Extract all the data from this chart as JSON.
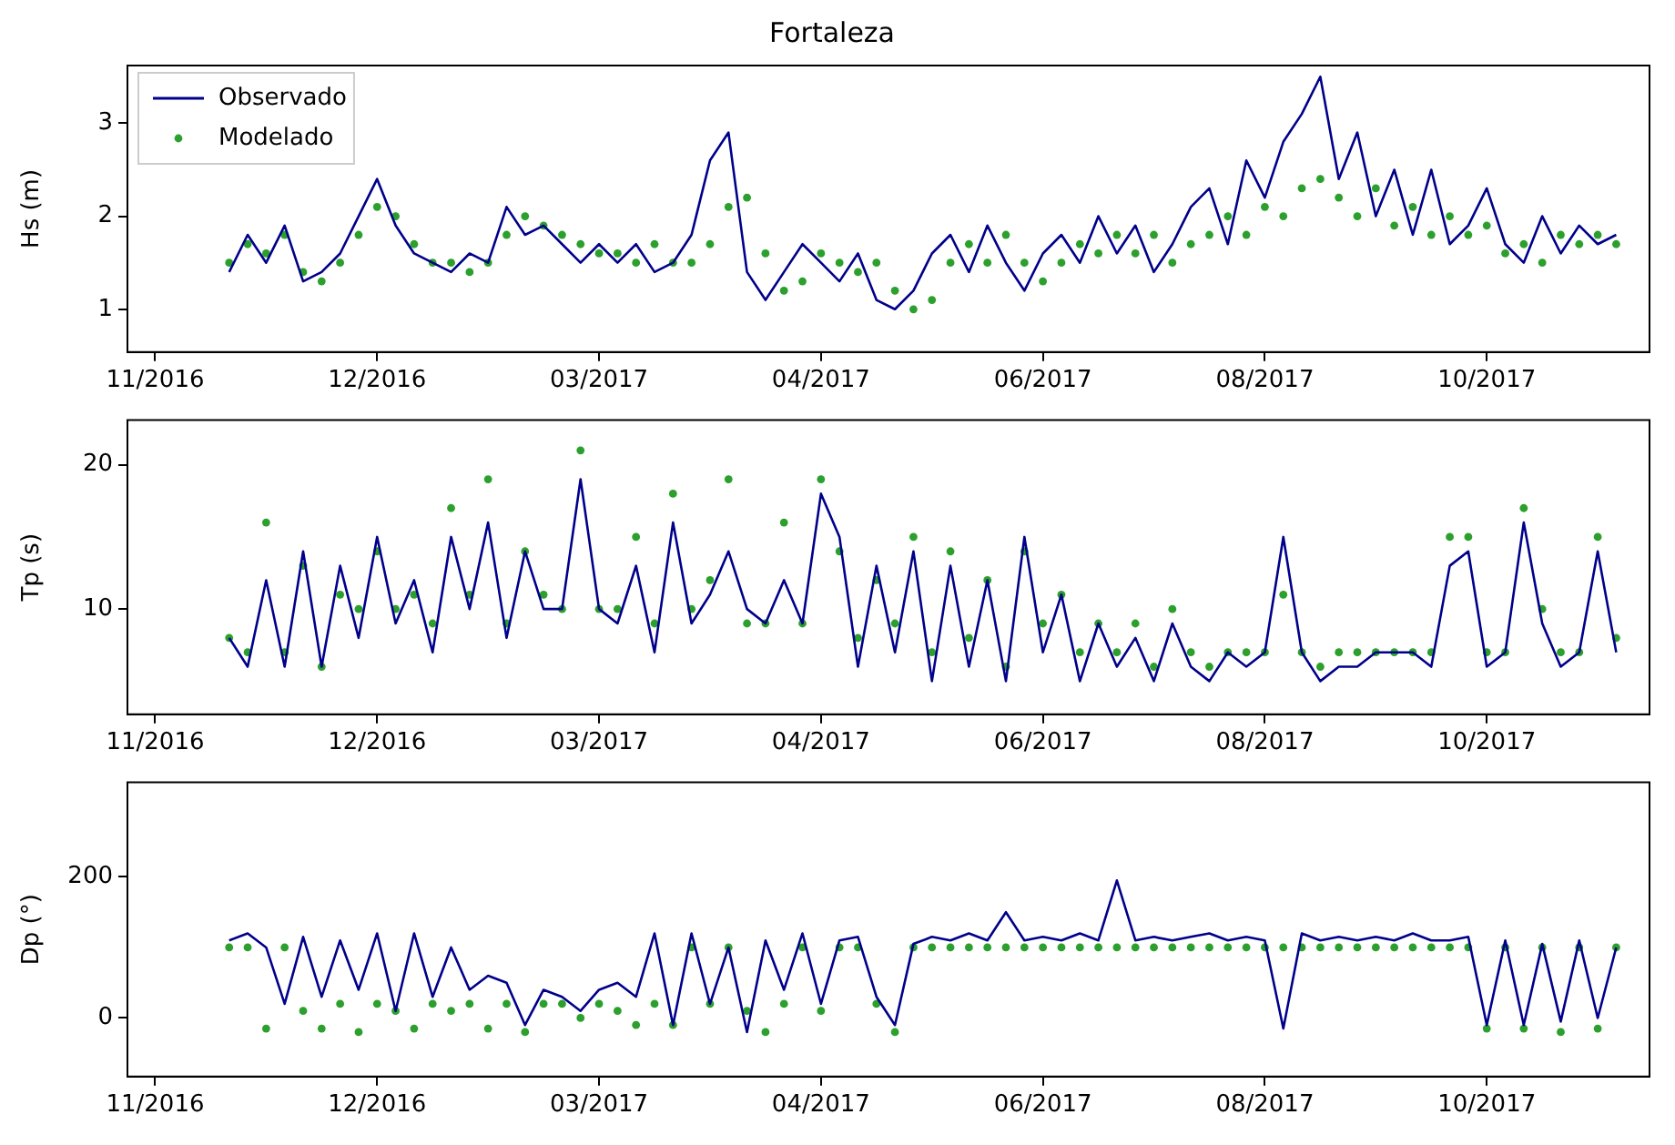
{
  "chart_data": [
    {
      "type": "line",
      "title": "Fortaleza",
      "ylabel": "Hs (m)",
      "legend": "top left",
      "categories": [
        "11/2016",
        null,
        null,
        null,
        null,
        null,
        null,
        null,
        null,
        null,
        null,
        null,
        "12/2016",
        null,
        null,
        null,
        null,
        null,
        null,
        null,
        null,
        null,
        null,
        null,
        "03/2017",
        null,
        null,
        null,
        null,
        null,
        null,
        null,
        null,
        null,
        null,
        null,
        "04/2017",
        null,
        null,
        null,
        null,
        null,
        null,
        null,
        null,
        null,
        null,
        null,
        "06/2017",
        null,
        null,
        null,
        null,
        null,
        null,
        null,
        null,
        null,
        null,
        null,
        "08/2017",
        null,
        null,
        null,
        null,
        null,
        null,
        null,
        null,
        null,
        null,
        null,
        "10/2017",
        null,
        null,
        null,
        null,
        null,
        null,
        null
      ],
      "ylim": [
        0.54,
        3.62
      ],
      "yticks": [
        1,
        2,
        3
      ],
      "series": [
        {
          "name": "Observado",
          "type": "line",
          "color": "#00008b",
          "values": [
            null,
            null,
            null,
            null,
            1.4,
            1.8,
            1.5,
            1.9,
            1.3,
            1.4,
            1.6,
            2.0,
            2.4,
            1.9,
            1.6,
            1.5,
            1.4,
            1.6,
            1.5,
            2.1,
            1.8,
            1.9,
            1.7,
            1.5,
            1.7,
            1.5,
            1.7,
            1.4,
            1.5,
            1.8,
            2.6,
            2.9,
            1.4,
            1.1,
            1.4,
            1.7,
            1.5,
            1.3,
            1.6,
            1.1,
            1.0,
            1.2,
            1.6,
            1.8,
            1.4,
            1.9,
            1.5,
            1.2,
            1.6,
            1.8,
            1.5,
            2.0,
            1.6,
            1.9,
            1.4,
            1.7,
            2.1,
            2.3,
            1.7,
            2.6,
            2.2,
            2.8,
            3.1,
            3.5,
            2.4,
            2.9,
            2.0,
            2.5,
            1.8,
            2.5,
            1.7,
            1.9,
            2.3,
            1.7,
            1.5,
            2.0,
            1.6,
            1.9,
            1.7,
            1.8
          ]
        },
        {
          "name": "Modelado",
          "type": "scatter",
          "marker": "circle",
          "color": "#2ca02c",
          "values": [
            null,
            null,
            null,
            null,
            1.5,
            1.7,
            1.6,
            1.8,
            1.4,
            1.3,
            1.5,
            1.8,
            2.1,
            2.0,
            1.7,
            1.5,
            1.5,
            1.4,
            1.5,
            1.8,
            2.0,
            1.9,
            1.8,
            1.7,
            1.6,
            1.6,
            1.5,
            1.7,
            1.5,
            1.5,
            1.7,
            2.1,
            2.2,
            1.6,
            1.2,
            1.3,
            1.6,
            1.5,
            1.4,
            1.5,
            1.2,
            1.0,
            1.1,
            1.5,
            1.7,
            1.5,
            1.8,
            1.5,
            1.3,
            1.5,
            1.7,
            1.6,
            1.8,
            1.6,
            1.8,
            1.5,
            1.7,
            1.8,
            2.0,
            1.8,
            2.1,
            2.0,
            2.3,
            2.4,
            2.2,
            2.0,
            2.3,
            1.9,
            2.1,
            1.8,
            2.0,
            1.8,
            1.9,
            1.6,
            1.7,
            1.5,
            1.8,
            1.7,
            1.8,
            1.7
          ]
        }
      ]
    },
    {
      "type": "line",
      "ylabel": "Tp (s)",
      "categories": [
        "11/2016",
        null,
        null,
        null,
        null,
        null,
        null,
        null,
        null,
        null,
        null,
        null,
        "12/2016",
        null,
        null,
        null,
        null,
        null,
        null,
        null,
        null,
        null,
        null,
        null,
        "03/2017",
        null,
        null,
        null,
        null,
        null,
        null,
        null,
        null,
        null,
        null,
        null,
        "04/2017",
        null,
        null,
        null,
        null,
        null,
        null,
        null,
        null,
        null,
        null,
        null,
        "06/2017",
        null,
        null,
        null,
        null,
        null,
        null,
        null,
        null,
        null,
        null,
        null,
        "08/2017",
        null,
        null,
        null,
        null,
        null,
        null,
        null,
        null,
        null,
        null,
        null,
        "10/2017",
        null,
        null,
        null,
        null,
        null,
        null,
        null
      ],
      "ylim": [
        2.7,
        23.1
      ],
      "yticks": [
        10,
        20
      ],
      "series": [
        {
          "type": "line",
          "color": "#00008b",
          "values": [
            null,
            null,
            null,
            null,
            8,
            6,
            12,
            6,
            14,
            6,
            13,
            8,
            15,
            9,
            12,
            7,
            15,
            10,
            16,
            8,
            14,
            10,
            10,
            19,
            10,
            9,
            13,
            7,
            16,
            9,
            11,
            14,
            10,
            9,
            12,
            9,
            18,
            15,
            6,
            13,
            7,
            14,
            5,
            13,
            6,
            12,
            5,
            15,
            7,
            11,
            5,
            9,
            6,
            8,
            5,
            9,
            6,
            5,
            7,
            6,
            7,
            15,
            7,
            5,
            6,
            6,
            7,
            7,
            7,
            6,
            13,
            14,
            6,
            7,
            16,
            9,
            6,
            7,
            14,
            7
          ]
        },
        {
          "type": "scatter",
          "marker": "circle",
          "color": "#2ca02c",
          "values": [
            null,
            null,
            null,
            null,
            8,
            7,
            16,
            7,
            13,
            6,
            11,
            10,
            14,
            10,
            11,
            9,
            17,
            11,
            19,
            9,
            14,
            11,
            10,
            21,
            10,
            10,
            15,
            9,
            18,
            10,
            12,
            19,
            9,
            9,
            16,
            9,
            19,
            14,
            8,
            12,
            9,
            15,
            7,
            14,
            8,
            12,
            6,
            14,
            9,
            11,
            7,
            9,
            7,
            9,
            6,
            10,
            7,
            6,
            7,
            7,
            7,
            11,
            7,
            6,
            7,
            7,
            7,
            7,
            7,
            7,
            15,
            15,
            7,
            7,
            17,
            10,
            7,
            7,
            15,
            8
          ]
        }
      ]
    },
    {
      "type": "line",
      "ylabel": "Dp (°)",
      "categories": [
        "11/2016",
        null,
        null,
        null,
        null,
        null,
        null,
        null,
        null,
        null,
        null,
        null,
        "12/2016",
        null,
        null,
        null,
        null,
        null,
        null,
        null,
        null,
        null,
        null,
        null,
        "03/2017",
        null,
        null,
        null,
        null,
        null,
        null,
        null,
        null,
        null,
        null,
        null,
        "04/2017",
        null,
        null,
        null,
        null,
        null,
        null,
        null,
        null,
        null,
        null,
        null,
        "06/2017",
        null,
        null,
        null,
        null,
        null,
        null,
        null,
        null,
        null,
        null,
        null,
        "08/2017",
        null,
        null,
        null,
        null,
        null,
        null,
        null,
        null,
        null,
        null,
        null,
        "10/2017",
        null,
        null,
        null,
        null,
        null,
        null,
        null
      ],
      "ylim": [
        -83,
        334
      ],
      "yticks": [
        0,
        200
      ],
      "series": [
        {
          "type": "line",
          "color": "#00008b",
          "values": [
            null,
            null,
            null,
            null,
            110,
            120,
            100,
            20,
            115,
            30,
            110,
            40,
            120,
            10,
            120,
            30,
            100,
            40,
            60,
            50,
            -10,
            40,
            30,
            10,
            40,
            50,
            30,
            120,
            -10,
            120,
            20,
            100,
            -20,
            110,
            40,
            120,
            20,
            110,
            115,
            30,
            -10,
            105,
            115,
            110,
            120,
            110,
            150,
            110,
            115,
            110,
            120,
            110,
            195,
            110,
            115,
            110,
            115,
            120,
            110,
            115,
            110,
            -15,
            120,
            110,
            115,
            110,
            115,
            110,
            120,
            110,
            110,
            115,
            -10,
            110,
            -10,
            105,
            -5,
            110,
            0,
            100
          ]
        },
        {
          "type": "scatter",
          "marker": "circle",
          "color": "#2ca02c",
          "values": [
            null,
            null,
            null,
            null,
            100,
            100,
            -15,
            100,
            10,
            -15,
            20,
            -20,
            20,
            10,
            -15,
            20,
            10,
            20,
            -15,
            20,
            -20,
            20,
            20,
            0,
            20,
            10,
            -10,
            20,
            -10,
            100,
            20,
            100,
            10,
            -20,
            20,
            100,
            10,
            100,
            100,
            20,
            -20,
            100,
            100,
            100,
            100,
            100,
            100,
            100,
            100,
            100,
            100,
            100,
            100,
            100,
            100,
            100,
            100,
            100,
            100,
            100,
            100,
            100,
            100,
            100,
            100,
            100,
            100,
            100,
            100,
            100,
            100,
            100,
            -15,
            100,
            -15,
            100,
            -20,
            100,
            -15,
            100
          ]
        }
      ]
    }
  ]
}
